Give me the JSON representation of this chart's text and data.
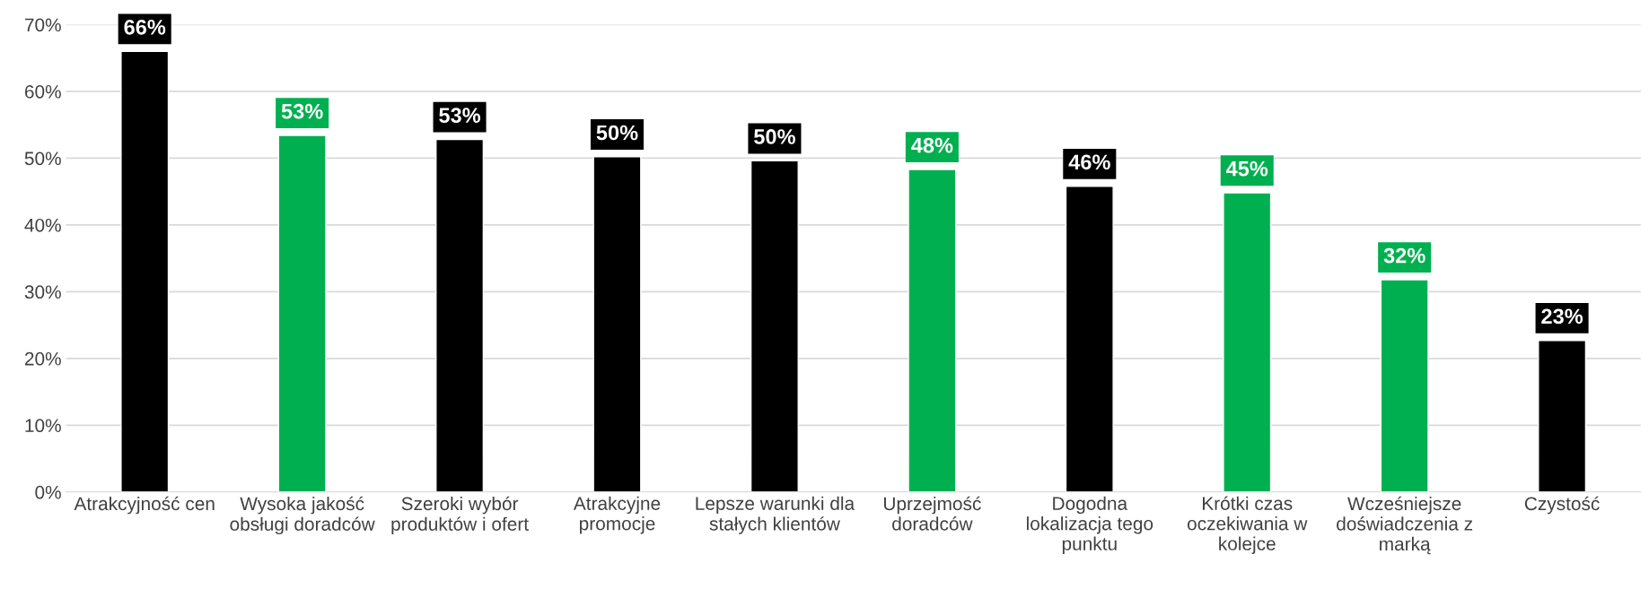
{
  "chart_data": {
    "type": "bar",
    "categories": [
      "Atrakcyjność cen",
      "Wysoka jakość obsługi doradców",
      "Szeroki wybór produktów i ofert",
      "Atrakcyjne promocje",
      "Lepsze warunki dla stałych klientów",
      "Uprzejmość doradców",
      "Dogodna lokalizacja tego punktu",
      "Krótki czas oczekiwania w kolejce",
      "Wcześniejsze doświadczenia z marką",
      "Czystość"
    ],
    "values": [
      66,
      53.4,
      52.8,
      50.2,
      49.6,
      48.3,
      45.8,
      44.8,
      31.8,
      22.7
    ],
    "colors": [
      "#000000",
      "#00b050",
      "#000000",
      "#000000",
      "#000000",
      "#00b050",
      "#000000",
      "#00b050",
      "#00b050",
      "#000000"
    ],
    "value_labels": [
      "66%",
      "53%",
      "53%",
      "50%",
      "50%",
      "48%",
      "46%",
      "45%",
      "32%",
      "23%"
    ],
    "ylim": [
      0,
      70
    ],
    "yticks": [
      {
        "value": 0,
        "label": "0%"
      },
      {
        "value": 10,
        "label": "10%"
      },
      {
        "value": 20,
        "label": "20%"
      },
      {
        "value": 30,
        "label": "30%"
      },
      {
        "value": 40,
        "label": "40%"
      },
      {
        "value": 50,
        "label": "50%"
      },
      {
        "value": 60,
        "label": "60%"
      },
      {
        "value": 70,
        "label": "70%"
      }
    ],
    "grid": "y"
  }
}
